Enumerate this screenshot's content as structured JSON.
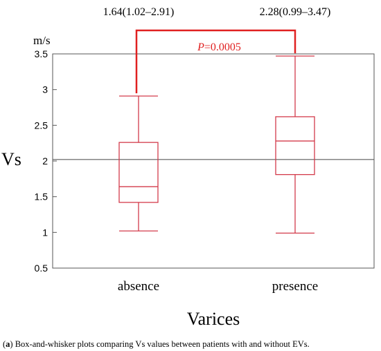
{
  "caption": {
    "prefix_open": "(",
    "prefix_letter": "a",
    "prefix_close": ")",
    "text": " Box-and-whisker plots comparing Vs values between patients with and without EVs."
  },
  "colors": {
    "box": "#d33a4a",
    "significance": "#e02020",
    "frame": "#555555",
    "reference_line": "#444444",
    "text": "#000000"
  },
  "chart_data": {
    "type": "box",
    "xlabel": "Varices",
    "ylabel": "Vs",
    "y_unit": "m/s",
    "ylim": [
      0.5,
      3.5
    ],
    "y_ticks": [
      "0.5",
      "1",
      "1.5",
      "2",
      "2.5",
      "3",
      "3.5"
    ],
    "categories": [
      "absence",
      "presence"
    ],
    "boxes": [
      {
        "category": "absence",
        "min": 1.02,
        "q1": 1.42,
        "median": 1.64,
        "q3": 2.26,
        "max": 2.91,
        "summary_label": "1.64(1.02–2.91)"
      },
      {
        "category": "presence",
        "min": 0.99,
        "q1": 1.81,
        "median": 2.28,
        "q3": 2.62,
        "max": 3.47,
        "summary_label": "2.28(0.99–3.47)"
      }
    ],
    "reference_line_y": 2.02,
    "significance": {
      "p_label": "P",
      "p_value": "=0.0005"
    }
  }
}
